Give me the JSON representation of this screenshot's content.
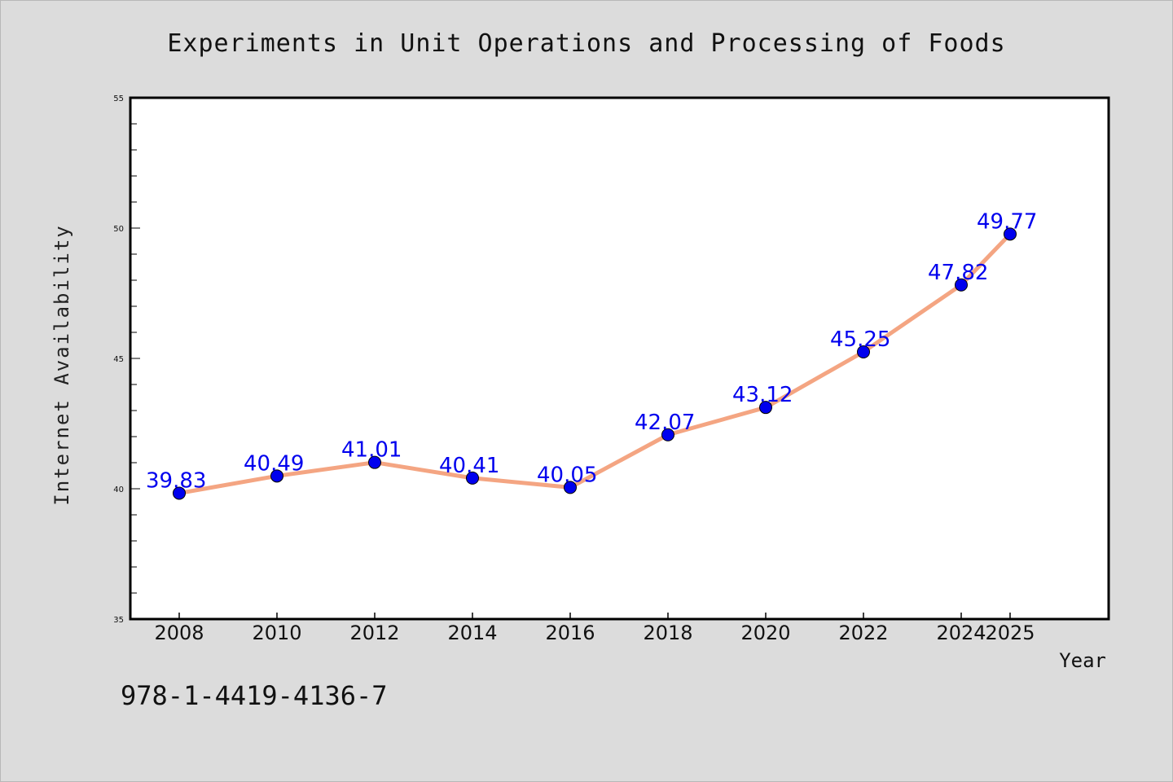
{
  "chart_data": {
    "type": "line",
    "title": "Experiments in Unit Operations and Processing of Foods",
    "xlabel": "Year",
    "ylabel": "Internet Availability",
    "x": [
      "2008",
      "2010",
      "2012",
      "2014",
      "2016",
      "2018",
      "2020",
      "2022",
      "2024",
      "2025"
    ],
    "series": [
      {
        "values": [
          39.83,
          40.49,
          41.01,
          40.41,
          40.05,
          42.07,
          43.12,
          45.25,
          47.82,
          49.77
        ],
        "labels": [
          "39.83",
          "40.49",
          "41.01",
          "40.41",
          "40.05",
          "42.07",
          "43.12",
          "45.25",
          "47.82",
          "49.77"
        ],
        "line_color": "#f4a582",
        "marker_color": "#0000ee"
      }
    ],
    "ylim": [
      35,
      55
    ],
    "yticks": [
      "35",
      "40",
      "45",
      "50",
      "55"
    ],
    "grid": false,
    "legend": "none"
  },
  "footer": {
    "isbn": "978-1-4419-4136-7"
  }
}
